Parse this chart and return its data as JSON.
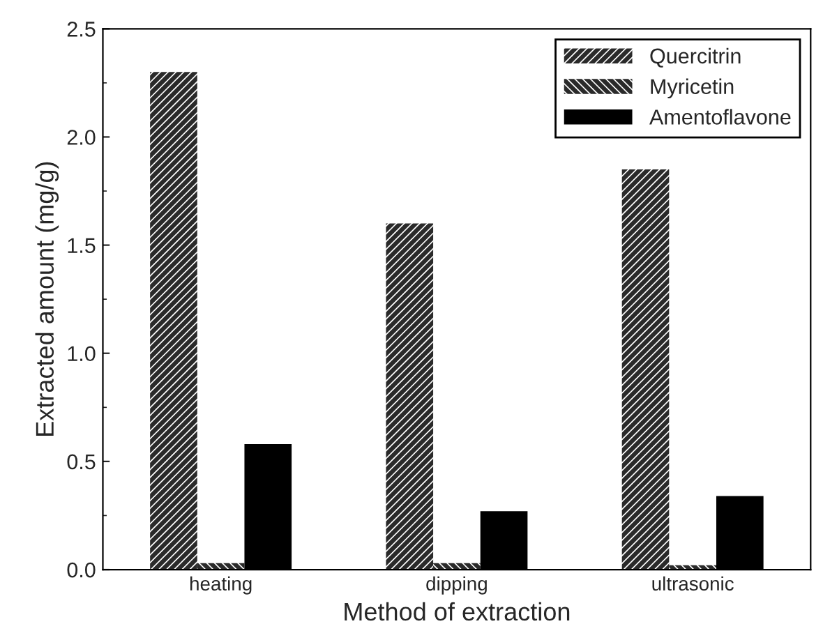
{
  "chart_data": {
    "type": "bar",
    "xlabel": "Method of extraction",
    "ylabel": "Extracted amount (mg/g)",
    "categories": [
      "heating",
      "dipping",
      "ultrasonic"
    ],
    "series": [
      {
        "name": "Quercitrin",
        "color": "#2a2a2a",
        "values": [
          2.3,
          1.6,
          1.85
        ]
      },
      {
        "name": "Myricetin",
        "color": "#2a2a2a",
        "values": [
          0.03,
          0.03,
          0.02
        ]
      },
      {
        "name": "Amentoflavone",
        "color": "#000000",
        "values": [
          0.58,
          0.27,
          0.34
        ]
      }
    ],
    "ylim": [
      0,
      2.5
    ],
    "yticks": [
      {
        "value": 0,
        "label": "0.0"
      },
      0.5,
      {
        "value": 1,
        "label": "1.0"
      },
      1.5,
      {
        "value": 2,
        "label": "2.0"
      },
      2.5
    ],
    "grid": false,
    "legend": "top right"
  }
}
